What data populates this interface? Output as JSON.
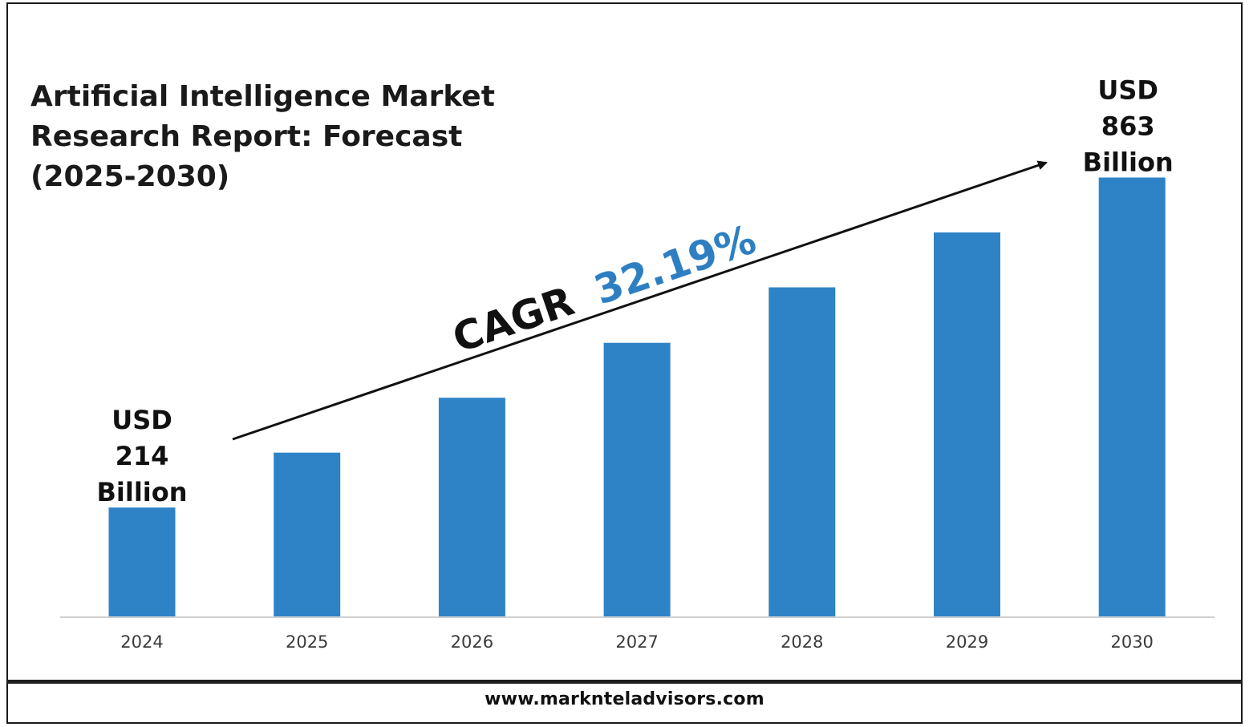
{
  "title": "Artificial Intelligence Market\nResearch Report: Forecast\n(2025-2030)",
  "footer": {
    "url": "www.marknteladvisors.com"
  },
  "annotation": {
    "cagr_prefix": "CAGR",
    "cagr_value": "32.19%",
    "cagr_prefix_color": "#111111",
    "cagr_value_color": "#2e7fc2"
  },
  "value_labels": {
    "start": [
      "USD",
      "214",
      "Billion"
    ],
    "end": [
      "USD",
      "863",
      "Billion"
    ]
  },
  "colors": {
    "bar": "#2e83c6",
    "axis": "#d0d0d0",
    "arrow": "#111111"
  },
  "chart_data": {
    "type": "bar",
    "title": "Artificial Intelligence Market Research Report: Forecast (2025-2030)",
    "categories": [
      "2024",
      "2025",
      "2026",
      "2027",
      "2028",
      "2029",
      "2030"
    ],
    "values": [
      214,
      322,
      430,
      538,
      647,
      755,
      863
    ],
    "units": "USD Billion",
    "xlabel": "",
    "ylabel": "",
    "ylim": [
      0,
      900
    ],
    "grid": false,
    "legend": "none"
  }
}
